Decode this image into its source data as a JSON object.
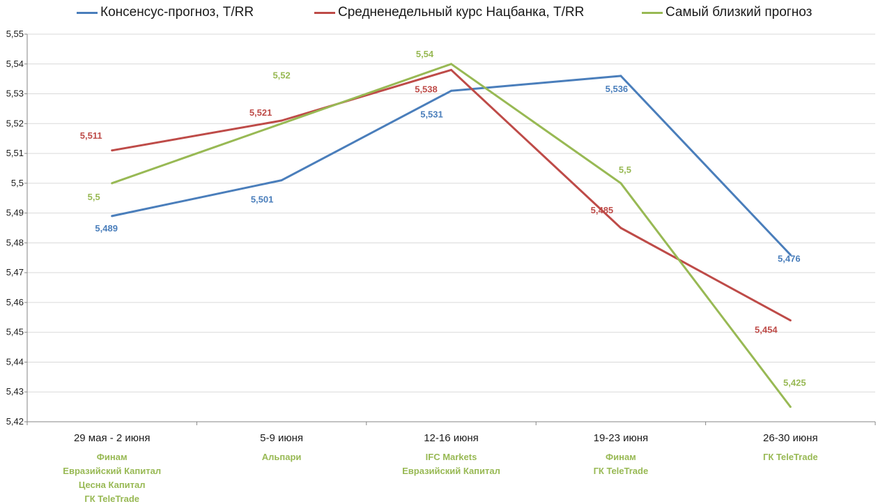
{
  "chart_data": {
    "type": "line",
    "title": "",
    "xlabel": "",
    "ylabel": "",
    "categories": [
      "29 мая - 2 июня",
      "5-9 июня",
      "12-16 июня",
      "19-23 июня",
      "26-30 июня"
    ],
    "category_notes": [
      [
        "Финам",
        "Евразийский Капитал",
        "Цесна Капитал",
        "ГК TeleTrade"
      ],
      [
        "Альпари"
      ],
      [
        "IFC Markets",
        "Евразийский Капитал"
      ],
      [
        "Финам",
        "ГК TeleTrade"
      ],
      [
        "ГК TeleTrade"
      ]
    ],
    "ylim": [
      5.42,
      5.55
    ],
    "y_ticks": [
      "5,42",
      "5,43",
      "5,44",
      "5,45",
      "5,46",
      "5,47",
      "5,48",
      "5,49",
      "5,5",
      "5,51",
      "5,52",
      "5,53",
      "5,54",
      "5,55"
    ],
    "grid": true,
    "legend_position": "top",
    "series": [
      {
        "name": "Консенсус-прогноз, Т/RR",
        "color": "#4a7ebb",
        "values": [
          5.489,
          5.501,
          5.531,
          5.536,
          5.476
        ],
        "labels": [
          "5,489",
          "5,501",
          "5,531",
          "5,536",
          "5,476"
        ]
      },
      {
        "name": "Средненедельный курс Нацбанка, Т/RR",
        "color": "#be4b48",
        "values": [
          5.511,
          5.521,
          5.538,
          5.485,
          5.454
        ],
        "labels": [
          "5,511",
          "5,521",
          "5,538",
          "5,485",
          "5,454"
        ]
      },
      {
        "name": "Самый близкий прогноз",
        "color": "#98b954",
        "values": [
          5.5,
          5.52,
          5.54,
          5.5,
          5.425
        ],
        "labels": [
          "5,5",
          "5,52",
          "5,54",
          "5,5",
          "5,425"
        ]
      }
    ]
  }
}
